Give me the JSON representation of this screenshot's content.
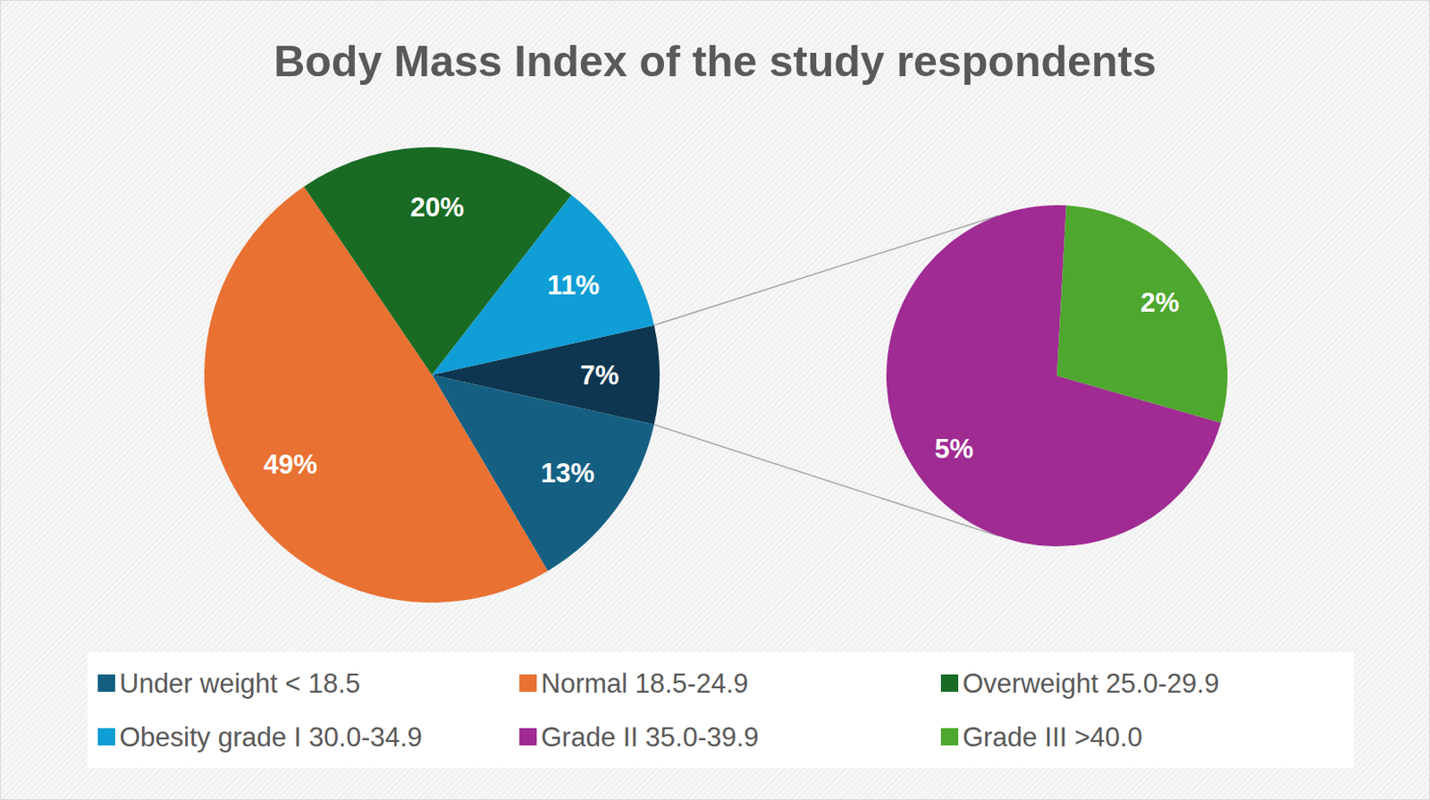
{
  "chart_data": {
    "type": "pie_of_pie",
    "title": "Body Mass Index of the study respondents",
    "primary": {
      "categories": [
        null,
        "Under weight < 18.5",
        "Normal 18.5-24.9",
        "Overweight 25.0-29.9",
        "Obesity grade I 30.0-34.9"
      ],
      "values": [
        7,
        13,
        49,
        20,
        11
      ],
      "value_labels": [
        "7%",
        "13%",
        "49%",
        "20%",
        "11%"
      ],
      "colors": [
        "#0e3650",
        "#156082",
        "#e97132",
        "#196b24",
        "#0f9ed5"
      ]
    },
    "secondary": {
      "categories": [
        "Grade II 35.0-39.9",
        "Grade III >40.0"
      ],
      "values": [
        5,
        2
      ],
      "value_labels": [
        "5%",
        "2%"
      ],
      "colors": [
        "#a02b93",
        "#4ea72e"
      ]
    },
    "data_labels": true,
    "legend": "bottom"
  }
}
